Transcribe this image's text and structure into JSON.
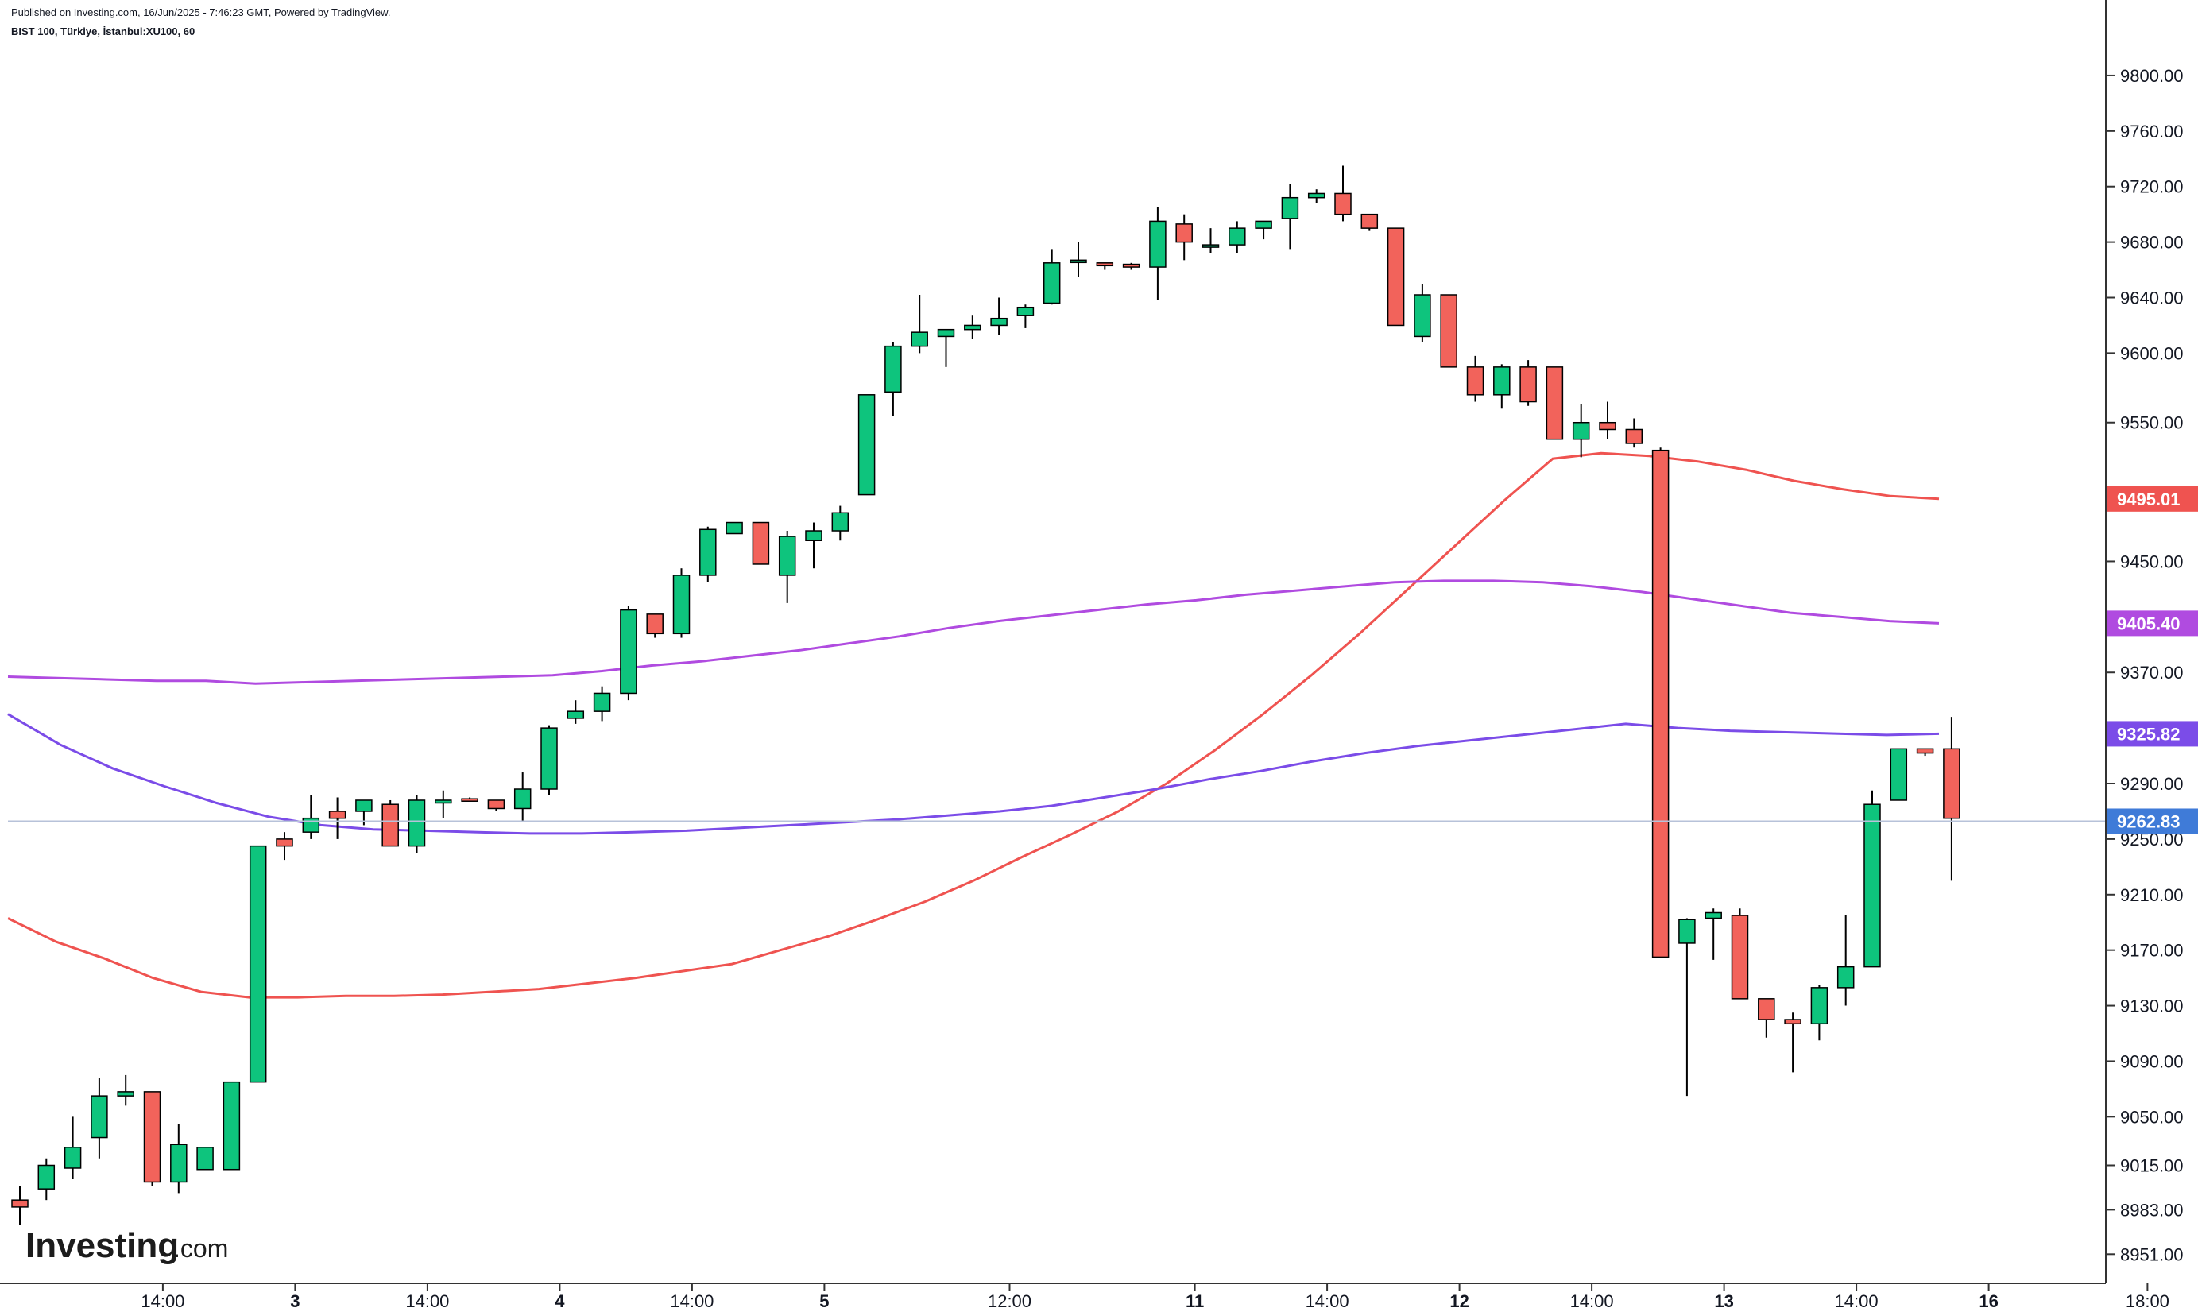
{
  "header": {
    "published": "Published on Investing.com, 16/Jun/2025 - 7:46:23 GMT, Powered by TradingView.",
    "symbol": "BIST 100, Türkiye, İstanbul:XU100, 60"
  },
  "logo": {
    "text": "Investing",
    "suffix": ".com"
  },
  "colors": {
    "up": "#0ec47d",
    "down": "#f2635b",
    "ma_red": "#ef5350",
    "ma_purple": "#b04be0",
    "ma_blue": "#7b4ce8",
    "last_price": "#3f7bd8"
  },
  "chart_data": {
    "type": "candlestick",
    "y_ticks": [
      "9800.00",
      "9760.00",
      "9720.00",
      "9680.00",
      "9640.00",
      "9600.00",
      "9550.00",
      "9450.00",
      "9370.00",
      "9290.00",
      "9250.00",
      "9210.00",
      "9170.00",
      "9130.00",
      "9090.00",
      "9050.00",
      "9015.00",
      "8983.00",
      "8951.00"
    ],
    "x_ticks": [
      {
        "label": "14:00",
        "idx": 3,
        "bold": false
      },
      {
        "label": "3",
        "idx": 8,
        "bold": true
      },
      {
        "label": "14:00",
        "idx": 13,
        "bold": false
      },
      {
        "label": "4",
        "idx": 18,
        "bold": true
      },
      {
        "label": "14:00",
        "idx": 23,
        "bold": false
      },
      {
        "label": "5",
        "idx": 28,
        "bold": true
      },
      {
        "label": "12:00",
        "idx": 35,
        "bold": false
      },
      {
        "label": "11",
        "idx": 42,
        "bold": true
      },
      {
        "label": "14:00",
        "idx": 47,
        "bold": false
      },
      {
        "label": "12",
        "idx": 52,
        "bold": true
      },
      {
        "label": "14:00",
        "idx": 57,
        "bold": false
      },
      {
        "label": "13",
        "idx": 62,
        "bold": true
      },
      {
        "label": "14:00",
        "idx": 67,
        "bold": false
      },
      {
        "label": "16",
        "idx": 72,
        "bold": true
      },
      {
        "label": "18:00",
        "idx": 78,
        "bold": false
      }
    ],
    "candles": [
      [
        8990,
        9000,
        8972,
        8985
      ],
      [
        8998,
        9020,
        8990,
        9015
      ],
      [
        9013,
        9050,
        9005,
        9028
      ],
      [
        9035,
        9078,
        9020,
        9065
      ],
      [
        9065,
        9080,
        9058,
        9068
      ],
      [
        9068,
        9068,
        9000,
        9003
      ],
      [
        9003,
        9045,
        8995,
        9030
      ],
      [
        9012,
        9025,
        9012,
        9028
      ],
      [
        9012,
        9075,
        9012,
        9075
      ],
      [
        9075,
        9245,
        9075,
        9245
      ],
      [
        9250,
        9255,
        9235,
        9245
      ],
      [
        9255,
        9282,
        9250,
        9265
      ],
      [
        9270,
        9280,
        9250,
        9265
      ],
      [
        9270,
        9275,
        9260,
        9278
      ],
      [
        9275,
        9278,
        9248,
        9245
      ],
      [
        9245,
        9282,
        9240,
        9278
      ],
      [
        9276,
        9285,
        9265,
        9278
      ],
      [
        9279,
        9280,
        9278,
        9278
      ],
      [
        9278,
        9278,
        9270,
        9272
      ],
      [
        9272,
        9298,
        9262,
        9286
      ],
      [
        9286,
        9332,
        9282,
        9330
      ],
      [
        9337,
        9350,
        9333,
        9342
      ],
      [
        9342,
        9360,
        9335,
        9355
      ],
      [
        9355,
        9418,
        9350,
        9415
      ],
      [
        9412,
        9412,
        9395,
        9398
      ],
      [
        9398,
        9445,
        9395,
        9440
      ],
      [
        9440,
        9475,
        9435,
        9473
      ],
      [
        9470,
        9478,
        9470,
        9478
      ],
      [
        9478,
        9478,
        9448,
        9448
      ],
      [
        9440,
        9472,
        9420,
        9468
      ],
      [
        9465,
        9478,
        9445,
        9472
      ],
      [
        9472,
        9490,
        9465,
        9485
      ],
      [
        9498,
        9570,
        9498,
        9570
      ],
      [
        9572,
        9608,
        9555,
        9605
      ],
      [
        9605,
        9642,
        9600,
        9615
      ],
      [
        9612,
        9615,
        9590,
        9617
      ],
      [
        9617,
        9627,
        9610,
        9620
      ],
      [
        9620,
        9640,
        9613,
        9625
      ],
      [
        9627,
        9635,
        9618,
        9633
      ],
      [
        9636,
        9675,
        9635,
        9665
      ],
      [
        9667,
        9680,
        9655,
        9667
      ],
      [
        9665,
        9665,
        9660,
        9663
      ],
      [
        9664,
        9665,
        9660,
        9662
      ],
      [
        9662,
        9705,
        9638,
        9695
      ],
      [
        9693,
        9700,
        9667,
        9680
      ],
      [
        9678,
        9690,
        9672,
        9678
      ],
      [
        9678,
        9695,
        9672,
        9690
      ],
      [
        9690,
        9695,
        9682,
        9695
      ],
      [
        9697,
        9722,
        9675,
        9712
      ],
      [
        9712,
        9718,
        9708,
        9715
      ],
      [
        9715,
        9735,
        9695,
        9700
      ],
      [
        9700,
        9700,
        9688,
        9690
      ],
      [
        9690,
        9690,
        9620,
        9620
      ],
      [
        9612,
        9650,
        9608,
        9642
      ],
      [
        9642,
        9642,
        9590,
        9590
      ],
      [
        9590,
        9598,
        9565,
        9570
      ],
      [
        9570,
        9592,
        9560,
        9590
      ],
      [
        9590,
        9595,
        9562,
        9565
      ],
      [
        9590,
        9590,
        9538,
        9538
      ],
      [
        9538,
        9563,
        9525,
        9550
      ],
      [
        9550,
        9565,
        9538,
        9545
      ],
      [
        9545,
        9553,
        9532,
        9535
      ],
      [
        9530,
        9532,
        9165,
        9165
      ],
      [
        9175,
        9193,
        9065,
        9192
      ],
      [
        9193,
        9200,
        9163,
        9197
      ],
      [
        9195,
        9200,
        9135,
        9135
      ],
      [
        9135,
        9135,
        9107,
        9120
      ],
      [
        9120,
        9125,
        9082,
        9117
      ],
      [
        9117,
        9145,
        9105,
        9143
      ],
      [
        9143,
        9195,
        9130,
        9158
      ],
      [
        9158,
        9285,
        9158,
        9275
      ],
      [
        9278,
        9315,
        9278,
        9315
      ],
      [
        9315,
        9312,
        9310,
        9312
      ],
      [
        9315,
        9338,
        9220,
        9265
      ]
    ],
    "series": [
      {
        "name": "",
        "last_value": "9495.01",
        "values": [
          9193,
          9176,
          9164,
          9150,
          9140,
          9136,
          9136,
          9137,
          9137,
          9138,
          9140,
          9142,
          9146,
          9150,
          9155,
          9160,
          9170,
          9180,
          9192,
          9205,
          9220,
          9237,
          9253,
          9270,
          9290,
          9314,
          9340,
          9368,
          9398,
          9430,
          9462,
          9494,
          9524,
          9528,
          9526,
          9522,
          9516,
          9508,
          9502,
          9497,
          9495.01
        ]
      },
      {
        "name": "",
        "last_value": "9405.40",
        "values": [
          9367,
          9366,
          9365,
          9364,
          9364,
          9362,
          9363,
          9364,
          9365,
          9366,
          9367,
          9368,
          9371,
          9375,
          9378,
          9382,
          9386,
          9391,
          9396,
          9402,
          9407,
          9411,
          9415,
          9419,
          9422,
          9426,
          9429,
          9432,
          9435,
          9436,
          9436,
          9435,
          9432,
          9428,
          9423,
          9418,
          9413,
          9410,
          9407,
          9405.4
        ]
      },
      {
        "name": "",
        "last_value": "9325.82",
        "values": [
          9340,
          9318,
          9301,
          9288,
          9276,
          9266,
          9260,
          9257,
          9256,
          9255,
          9254,
          9254,
          9255,
          9256,
          9258,
          9260,
          9262,
          9264,
          9267,
          9270,
          9274,
          9280,
          9286,
          9293,
          9299,
          9306,
          9312,
          9317,
          9321,
          9325,
          9329,
          9333,
          9330,
          9328,
          9327,
          9326,
          9325,
          9325.82
        ]
      }
    ],
    "last_price": "9262.83",
    "ylim": [
      8930,
      9820
    ],
    "grid": false
  }
}
